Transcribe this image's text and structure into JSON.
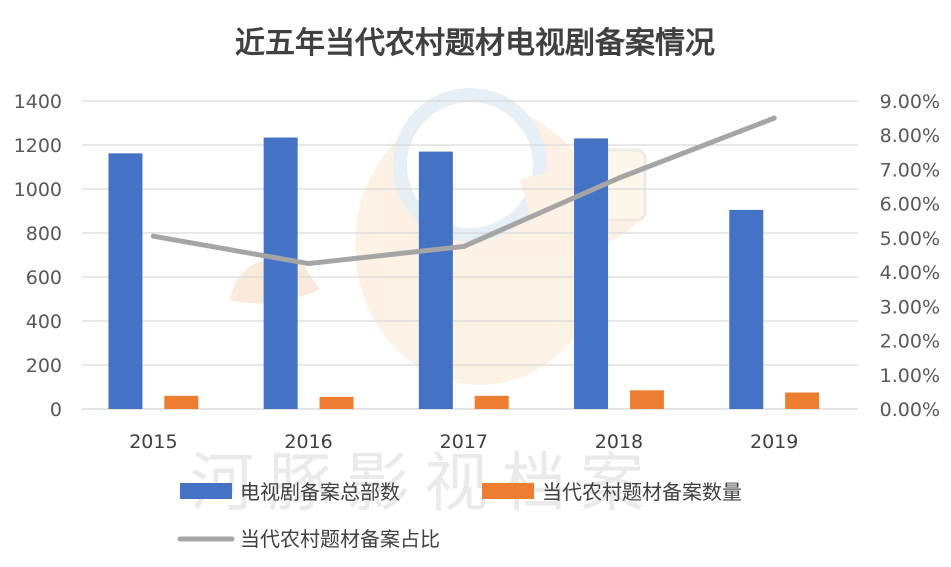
{
  "chart_data": {
    "type": "bar+line",
    "title": "近五年当代农村题材电视剧备案情况",
    "categories": [
      "2015",
      "2016",
      "2017",
      "2018",
      "2019"
    ],
    "series": [
      {
        "name": "电视剧备案总部数",
        "type": "bar",
        "axis": "left",
        "color": "#4472c4",
        "values": [
          1162,
          1234,
          1170,
          1230,
          905
        ]
      },
      {
        "name": "当代农村题材备案数量",
        "type": "bar",
        "axis": "left",
        "color": "#ed7d31",
        "values": [
          60,
          55,
          60,
          85,
          75
        ]
      },
      {
        "name": "当代农村题材备案占比",
        "type": "line",
        "axis": "right",
        "color": "#a5a5a5",
        "values": [
          5.05,
          4.25,
          4.75,
          6.75,
          8.5
        ]
      }
    ],
    "ylim": [
      0,
      1400
    ],
    "yticks": [
      "0",
      "200",
      "400",
      "600",
      "800",
      "1000",
      "1200",
      "1400"
    ],
    "y2lim": [
      0,
      9
    ],
    "y2ticks": [
      "0.00%",
      "1.00%",
      "2.00%",
      "3.00%",
      "4.00%",
      "5.00%",
      "6.00%",
      "7.00%",
      "8.00%",
      "9.00%"
    ],
    "grid": true,
    "legend_position": "bottom"
  },
  "watermark": "河豚影视档案"
}
